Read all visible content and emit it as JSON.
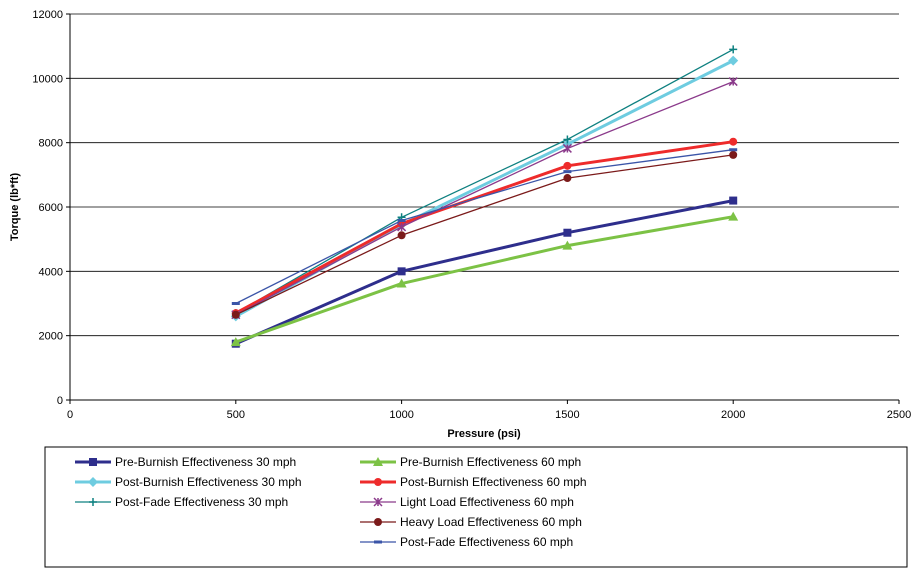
{
  "chart_data": {
    "type": "line",
    "title": "",
    "xlabel": "Pressure (psi)",
    "ylabel": "Torque (lb*ft)",
    "xlim": [
      0,
      2500
    ],
    "ylim": [
      0,
      12000
    ],
    "x_ticks": [
      0,
      500,
      1000,
      1500,
      2000,
      2500
    ],
    "y_ticks": [
      0,
      2000,
      4000,
      6000,
      8000,
      10000,
      12000
    ],
    "grid": "horizontal-major",
    "legend_position": "bottom",
    "x": [
      500,
      1000,
      1500,
      2000
    ],
    "series": [
      {
        "name": "Pre-Burnish Effectiveness 30 mph",
        "values": [
          1750,
          4000,
          5200,
          6200
        ],
        "color": "#2e2e8c",
        "marker": "square",
        "width": 3
      },
      {
        "name": "Post-Burnish Effectiveness 30 mph",
        "values": [
          2600,
          5450,
          7950,
          10550
        ],
        "color": "#6ecce0",
        "marker": "diamond",
        "width": 3
      },
      {
        "name": "Post-Fade Effectiveness 30 mph",
        "values": [
          2700,
          5680,
          8100,
          10900
        ],
        "color": "#0e8080",
        "marker": "plus",
        "width": 1.3
      },
      {
        "name": "Pre-Burnish Effectiveness 60 mph",
        "values": [
          1800,
          3620,
          4800,
          5700
        ],
        "color": "#7cc245",
        "marker": "triangle",
        "width": 3
      },
      {
        "name": "Post-Burnish Effectiveness 60 mph",
        "values": [
          2700,
          5480,
          7280,
          8030
        ],
        "color": "#ee2b2b",
        "marker": "circle",
        "width": 3
      },
      {
        "name": "Light Load Effectiveness 60 mph",
        "values": [
          2650,
          5380,
          7820,
          9900
        ],
        "color": "#8b3a8b",
        "marker": "star",
        "width": 1.3
      },
      {
        "name": "Heavy Load Effectiveness 60 mph",
        "values": [
          2650,
          5120,
          6900,
          7620
        ],
        "color": "#7b1a1a",
        "marker": "circle",
        "width": 1.3
      },
      {
        "name": "Post-Fade Effectiveness 60 mph",
        "values": [
          3000,
          5580,
          7100,
          7780
        ],
        "color": "#3b55a8",
        "marker": "dash",
        "width": 1.3
      }
    ]
  }
}
